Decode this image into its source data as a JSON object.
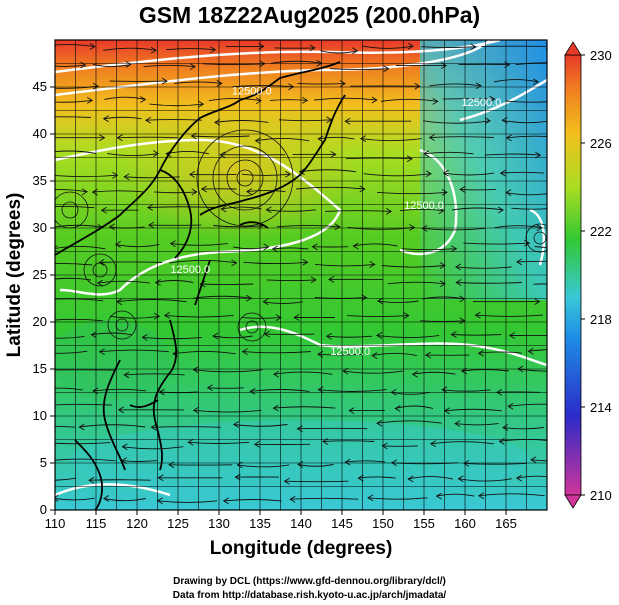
{
  "title": "GSM 18Z22Aug2025 (200.0hPa)",
  "credits": {
    "line1": "Drawing by DCL (https://www.gfd-dennou.org/library/dcl/)",
    "line2": "Data from http://database.rish.kyoto-u.ac.jp/arch/jmadata/"
  },
  "chart_data": {
    "type": "heatmap",
    "title": "GSM 18Z22Aug2025 (200.0hPa)",
    "xlabel": "Longitude (degrees)",
    "ylabel": "Latitude  (degrees)",
    "xlim": [
      110,
      170
    ],
    "ylim": [
      0,
      50
    ],
    "x_ticks": [
      "110",
      "115",
      "120",
      "125",
      "130",
      "135",
      "140",
      "145",
      "150",
      "155",
      "160",
      "165"
    ],
    "y_ticks": [
      "0",
      "5",
      "10",
      "15",
      "20",
      "25",
      "30",
      "35",
      "40",
      "45"
    ],
    "colorbar": {
      "min": 210,
      "max": 230,
      "tick_labels": [
        "230",
        "226",
        "222",
        "218",
        "214",
        "210"
      ],
      "colors": [
        "#d0359b",
        "#2b2bc8",
        "#1e8fe6",
        "#39c8d6",
        "#33c833",
        "#aadd22",
        "#f2c01e",
        "#f08020",
        "#e83a2a"
      ]
    },
    "contour_labels": [
      {
        "text": "12500.0",
        "lon": 134,
        "lat": 44.2
      },
      {
        "text": "12500.0",
        "lon": 126.5,
        "lat": 25.2
      },
      {
        "text": "12500.0",
        "lon": 155,
        "lat": 32
      },
      {
        "text": "12500.0",
        "lon": 162,
        "lat": 43
      },
      {
        "text": "12500.0",
        "lon": 146,
        "lat": 16.5
      }
    ],
    "grid": true,
    "field_description_colors": {
      "north_high": "#e83a2a",
      "mid": "#33c833",
      "south_low": "#39c8d6",
      "northeast_low": "#1e8fe6"
    }
  }
}
